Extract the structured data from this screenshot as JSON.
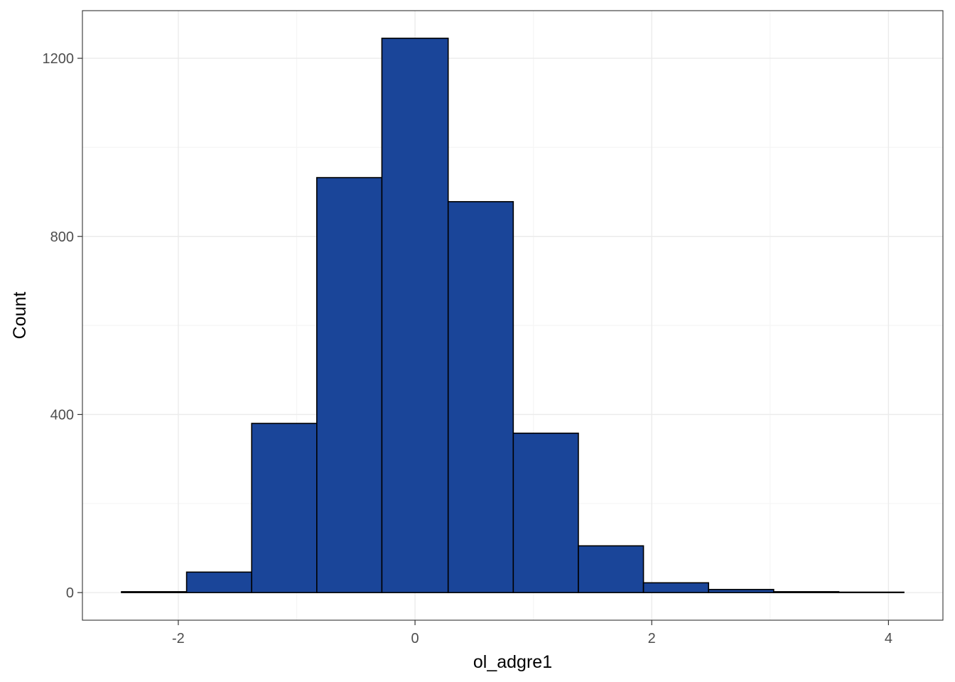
{
  "chart_data": {
    "type": "bar",
    "subtype": "histogram",
    "title": "",
    "xlabel": "ol_adgre1",
    "ylabel": "Count",
    "bins": [
      {
        "x0": -2.48,
        "x1": -1.93,
        "count": 2
      },
      {
        "x0": -1.93,
        "x1": -1.38,
        "count": 46
      },
      {
        "x0": -1.38,
        "x1": -0.83,
        "count": 380
      },
      {
        "x0": -0.83,
        "x1": -0.28,
        "count": 932
      },
      {
        "x0": -0.28,
        "x1": 0.28,
        "count": 1245
      },
      {
        "x0": 0.28,
        "x1": 0.83,
        "count": 878
      },
      {
        "x0": 0.83,
        "x1": 1.38,
        "count": 358
      },
      {
        "x0": 1.38,
        "x1": 1.93,
        "count": 105
      },
      {
        "x0": 1.93,
        "x1": 2.48,
        "count": 22
      },
      {
        "x0": 2.48,
        "x1": 3.03,
        "count": 7
      },
      {
        "x0": 3.03,
        "x1": 3.58,
        "count": 2
      },
      {
        "x0": 3.58,
        "x1": 4.13,
        "count": 1
      }
    ],
    "xlim": [
      -2.81,
      4.46
    ],
    "ylim": [
      -62,
      1307
    ],
    "x_ticks": [
      -2,
      0,
      2,
      4
    ],
    "x_tick_labels": [
      "-2",
      "0",
      "2",
      "4"
    ],
    "y_ticks": [
      0,
      400,
      800,
      1200
    ],
    "y_tick_labels": [
      "0",
      "400",
      "800",
      "1200"
    ],
    "grid": true,
    "legend": "none",
    "colors": {
      "bar_fill": "#1a4599",
      "bar_stroke": "#000000",
      "grid_major": "#ebebeb",
      "grid_minor": "#f5f5f5",
      "panel_border": "#333333"
    }
  }
}
